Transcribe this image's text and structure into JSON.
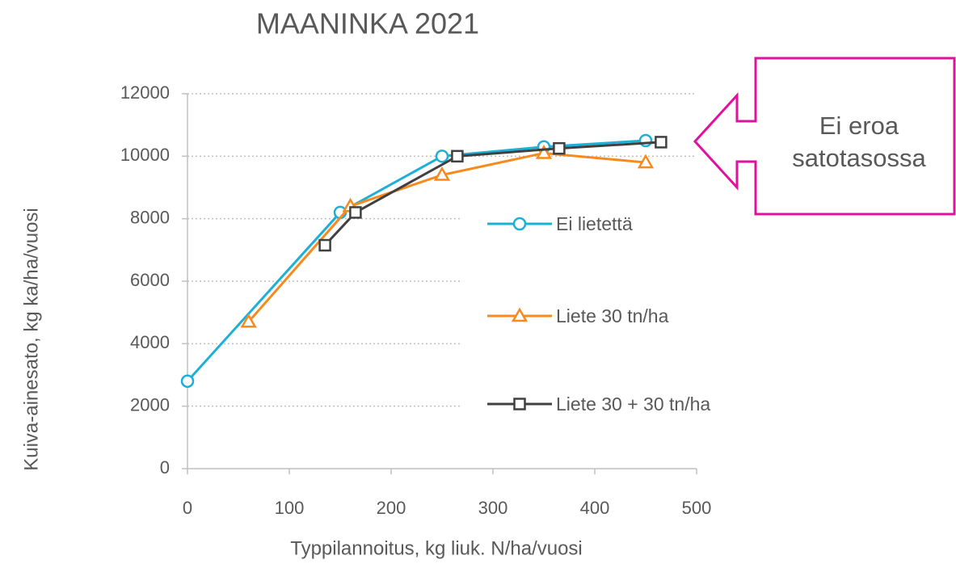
{
  "chart_data": {
    "type": "line",
    "title": "MAANINKA 2021",
    "x_label": "Typpilannoitus, kg liuk. N/ha/vuosi",
    "y_label": "Kuiva-ainesato, kg ka/ha/vuosi",
    "annotation": [
      "Ei eroa",
      "satotasossa"
    ],
    "annotation_color": "#e0119c",
    "xlim": [
      0,
      500
    ],
    "xticks": [
      0,
      100,
      200,
      300,
      400,
      500
    ],
    "ylim": [
      0,
      12000
    ],
    "yticks": [
      0,
      2000,
      4000,
      6000,
      8000,
      10000,
      12000
    ],
    "grid": true,
    "legend": "right",
    "series": [
      {
        "name": "Ei lietettä",
        "color": "#1cb0d8",
        "marker": "circle",
        "x": [
          0,
          150,
          250,
          350,
          450
        ],
        "values": [
          2800,
          8200,
          10000,
          10300,
          10500
        ]
      },
      {
        "name": "Liete 30 tn/ha",
        "color": "#f78a1d",
        "marker": "triangle",
        "x": [
          60,
          160,
          250,
          350,
          450
        ],
        "values": [
          4700,
          8400,
          9400,
          10100,
          9800
        ]
      },
      {
        "name": "Liete 30 + 30 tn/ha",
        "color": "#404040",
        "marker": "square",
        "x": [
          135,
          165,
          265,
          365,
          465
        ],
        "values": [
          7150,
          8200,
          10000,
          10250,
          10450
        ]
      }
    ]
  }
}
